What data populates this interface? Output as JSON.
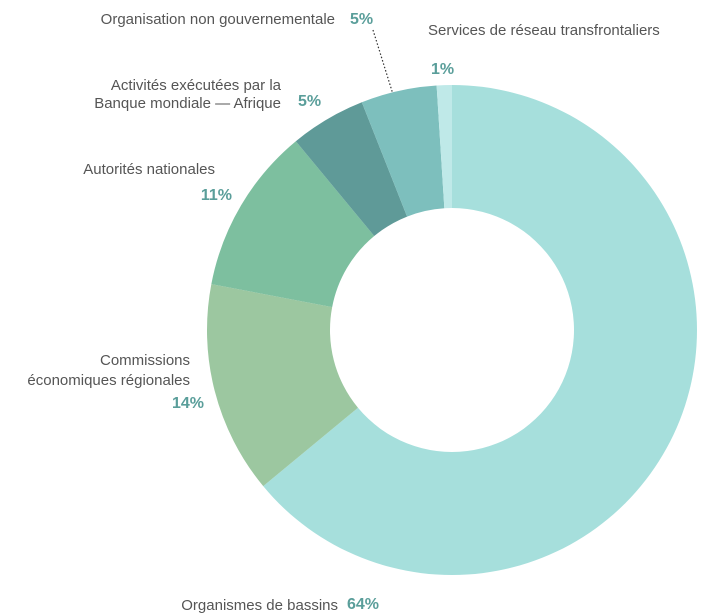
{
  "chart_data": {
    "type": "donut",
    "categories": [
      [
        "Organismes de bassins"
      ],
      [
        "Commissions",
        "économiques régionales"
      ],
      [
        "Autorités nationales"
      ],
      [
        "Activités exécutées par la",
        "Banque mondiale — Afrique"
      ],
      [
        "Organisation non gouvernementale"
      ],
      [
        "Services de réseau transfrontaliers"
      ]
    ],
    "values": [
      64,
      14,
      11,
      5,
      5,
      1
    ],
    "value_labels": [
      "64%",
      "14%",
      "11%",
      "5%",
      "5%",
      "1%"
    ],
    "colors": [
      "#a6dfdc",
      "#9cc7a0",
      "#7dbf9f",
      "#5f9a98",
      "#7dbfbd",
      "#bfe9e8"
    ]
  }
}
